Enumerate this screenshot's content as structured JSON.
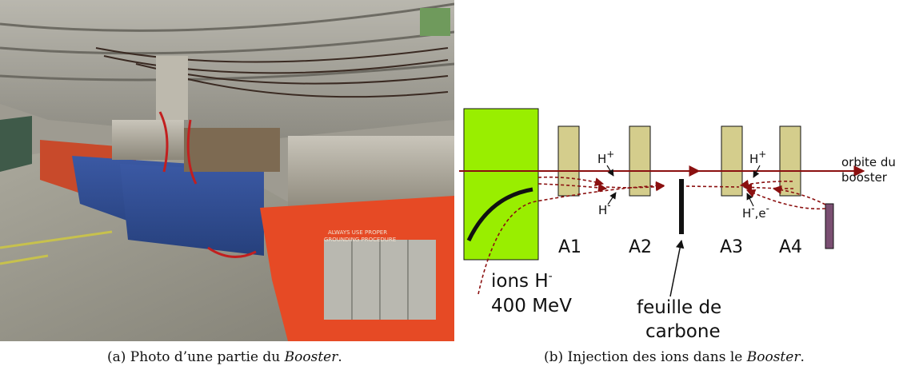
{
  "figure": {
    "caption_a": {
      "prefix": "(a) Photo d’une partie du ",
      "italic": "Booster",
      "suffix": "."
    },
    "caption_b": {
      "prefix": "(b) Injection des ions dans le ",
      "italic": "Booster",
      "suffix": "."
    }
  },
  "photo": {
    "panel_text": [
      "ALWAYS USE PROPER",
      "GROUNDING PROCEDURE"
    ]
  },
  "diagram": {
    "magnets": [
      "A1",
      "A2",
      "A3",
      "A4"
    ],
    "orbit_label": [
      "orbite du",
      "booster"
    ],
    "ion_label": {
      "line1": "ions H",
      "sup1": "-",
      "line2": "400 MeV"
    },
    "foil_label": [
      "feuille de",
      "carbone"
    ],
    "h_plus": "H",
    "h_plus_sup": "+",
    "h_minus": "H",
    "h_minus_sup": "-",
    "h_minus_e": {
      "h": "H",
      "sup1": "-",
      "e": ",e",
      "sup2": "-"
    },
    "colors": {
      "dipole": "#99ee00",
      "magnet": "#d4cd8c",
      "orbit": "#8b1010",
      "dump": "#7a4f72"
    }
  }
}
